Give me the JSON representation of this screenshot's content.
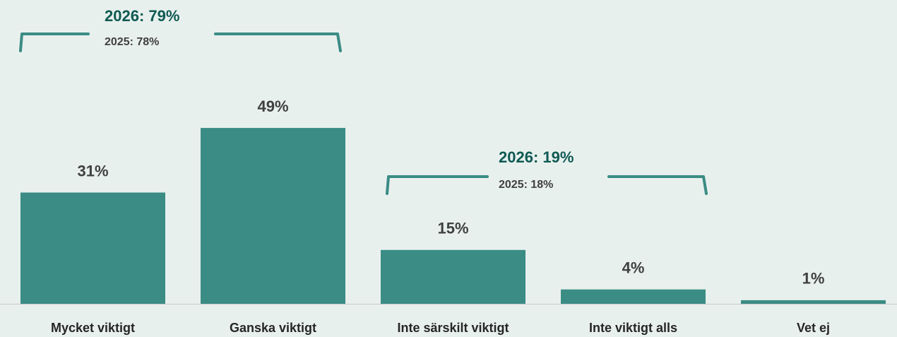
{
  "chart_data": {
    "type": "bar",
    "categories": [
      "Mycket viktigt",
      "Ganska viktigt",
      "Inte särskilt viktigt",
      "Inte viktigt alls",
      "Vet ej"
    ],
    "values": [
      31,
      49,
      15,
      4,
      1
    ],
    "value_labels": [
      "31%",
      "49%",
      "15%",
      "4%",
      "1%"
    ],
    "color": "#3a8c84",
    "annotations": [
      {
        "label": "2026: 79%",
        "sublabel": "2025: 78%"
      },
      {
        "label": "2026: 19%",
        "sublabel": "2025: 18%"
      }
    ]
  }
}
